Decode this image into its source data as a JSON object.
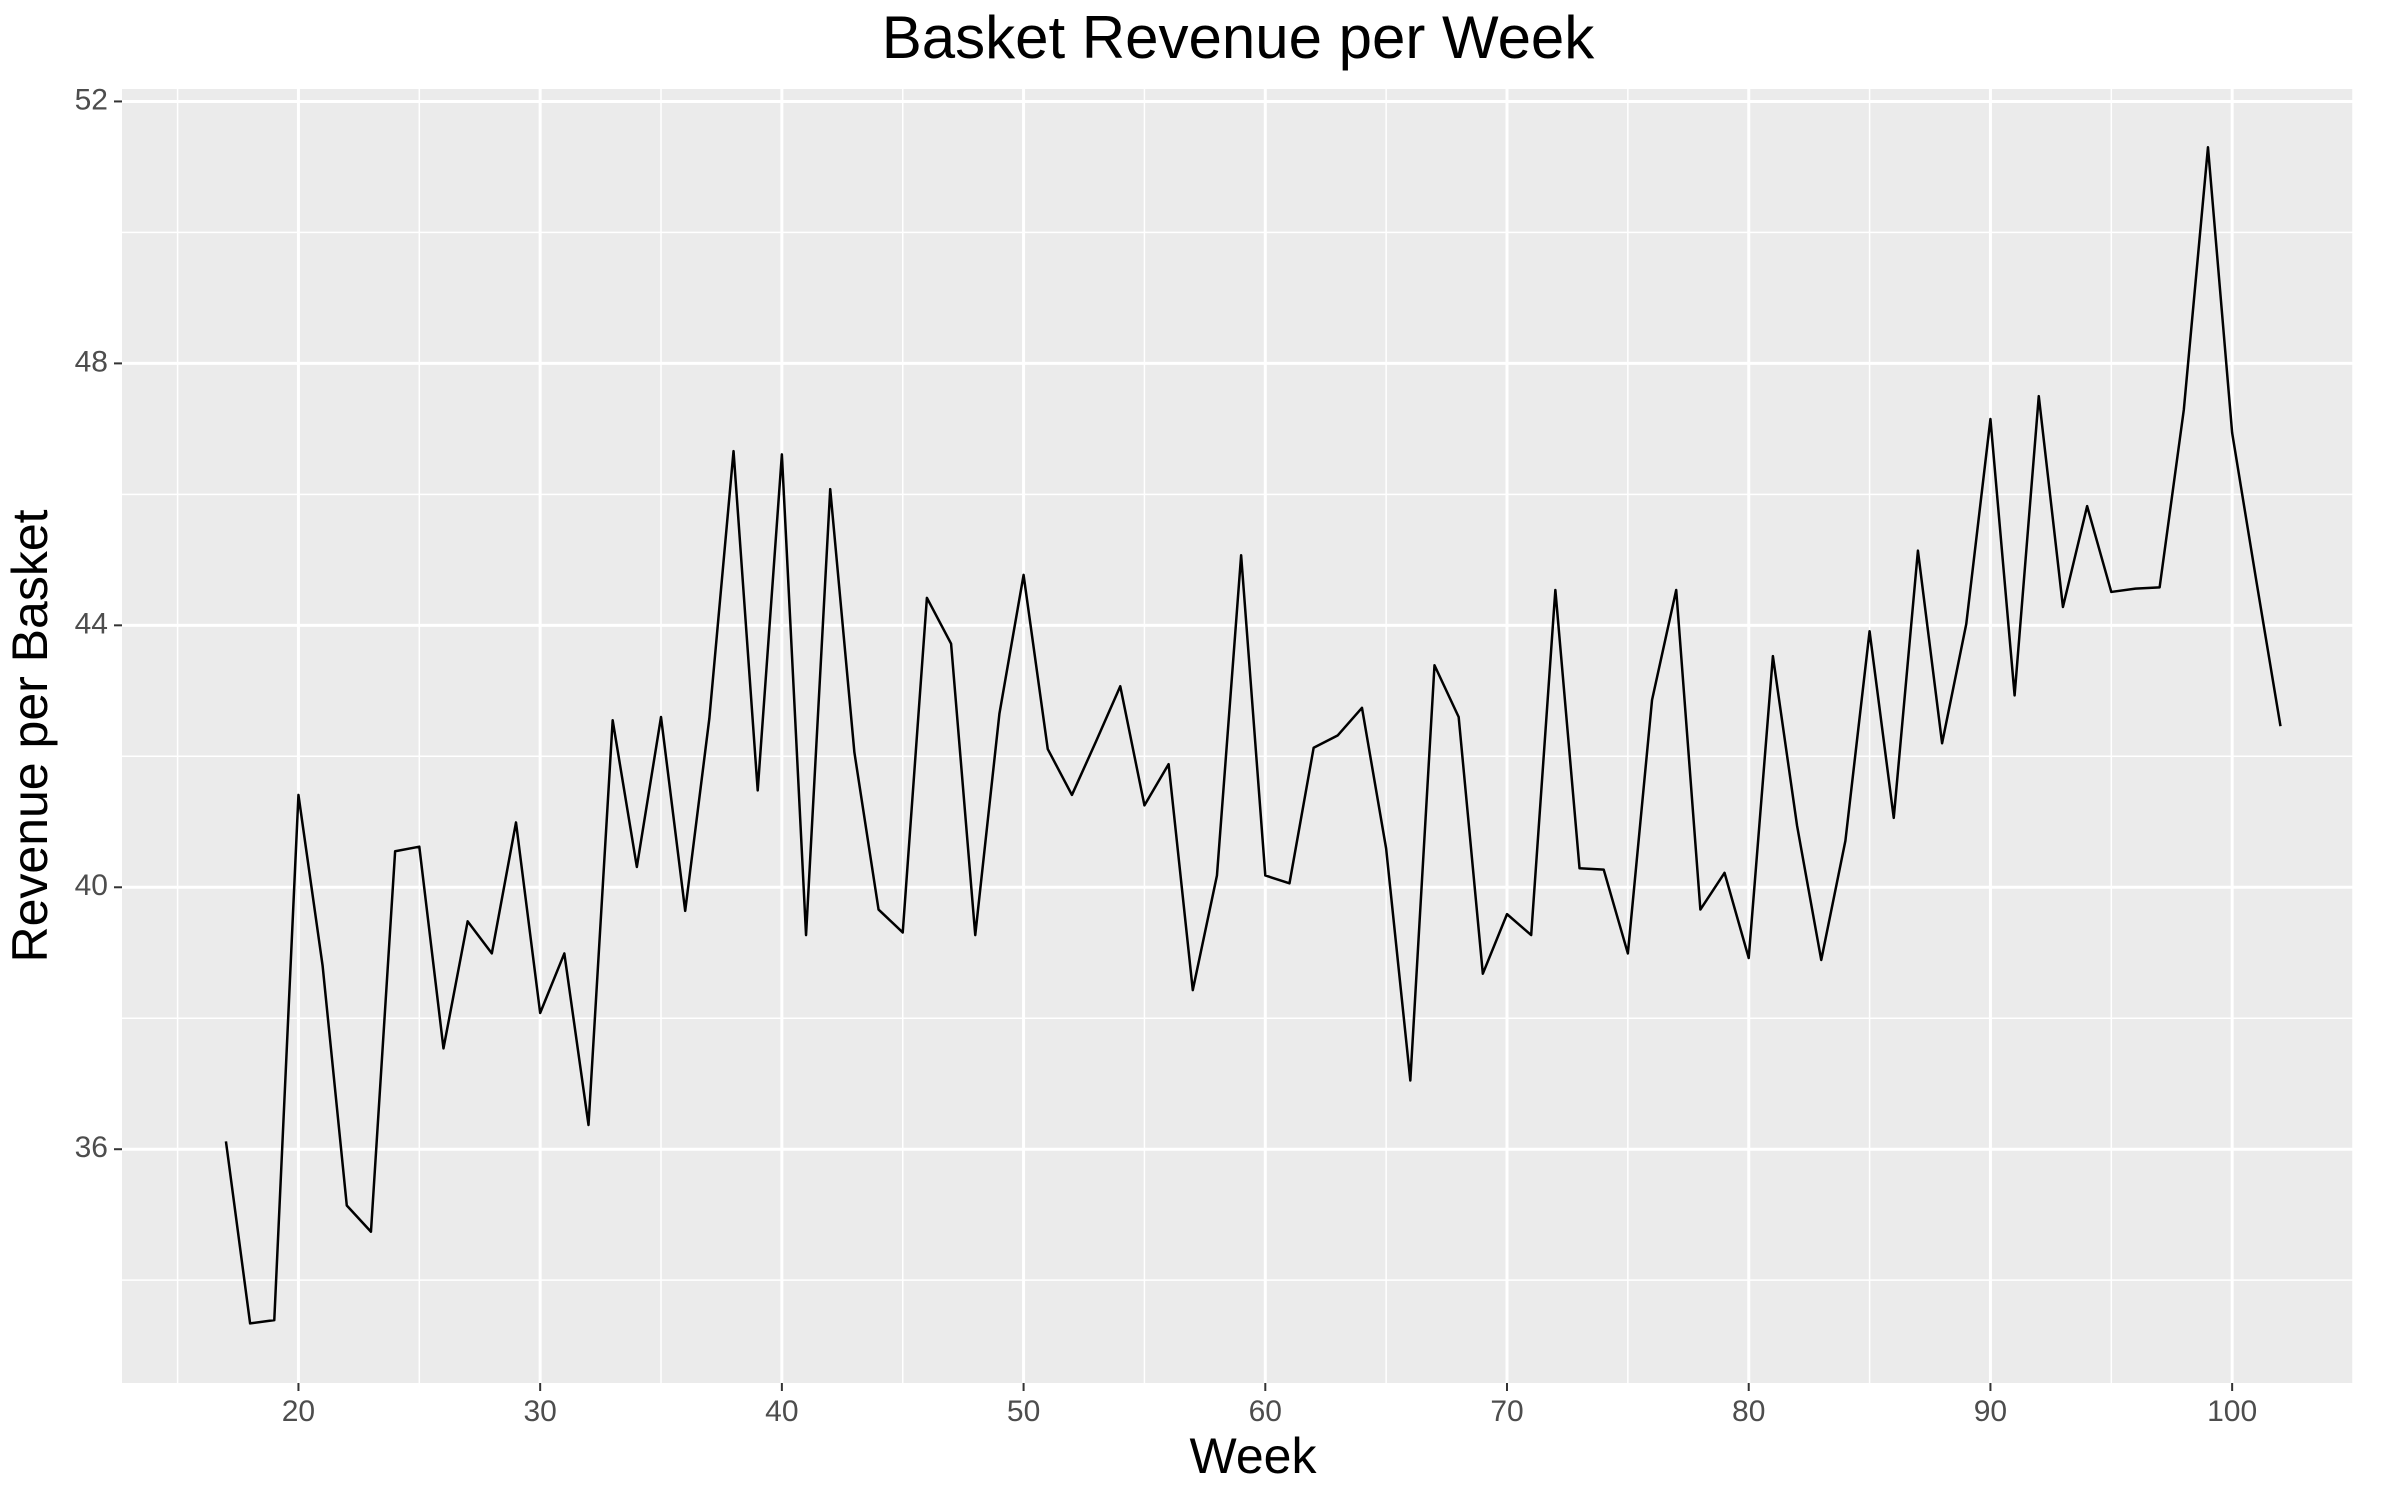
{
  "chart_data": {
    "type": "line",
    "title": "Basket Revenue per Week",
    "xlabel": "Week",
    "ylabel": "Revenue per Basket",
    "x": [
      17,
      18,
      19,
      20,
      21,
      22,
      23,
      24,
      25,
      26,
      27,
      28,
      29,
      30,
      31,
      32,
      33,
      34,
      35,
      36,
      37,
      38,
      39,
      40,
      41,
      42,
      43,
      44,
      45,
      46,
      47,
      48,
      49,
      50,
      51,
      52,
      53,
      54,
      55,
      56,
      57,
      58,
      59,
      60,
      61,
      62,
      63,
      64,
      65,
      66,
      67,
      68,
      69,
      70,
      71,
      72,
      73,
      74,
      75,
      76,
      77,
      78,
      79,
      80,
      81,
      82,
      83,
      84,
      85,
      86,
      87,
      88,
      89,
      90,
      91,
      92,
      93,
      94,
      95,
      96,
      97,
      98,
      99,
      100,
      101,
      102
    ],
    "series": [
      {
        "name": "Revenue per Basket",
        "color": "#000000",
        "values": [
          36.12,
          33.34,
          33.39,
          41.41,
          38.8,
          35.14,
          34.74,
          40.55,
          40.62,
          37.54,
          39.48,
          38.99,
          40.99,
          38.08,
          38.99,
          36.37,
          42.55,
          40.31,
          42.6,
          39.64,
          42.58,
          46.66,
          41.48,
          46.61,
          39.27,
          46.08,
          42.06,
          39.66,
          39.31,
          44.42,
          43.72,
          39.27,
          42.65,
          44.77,
          42.11,
          41.41,
          42.23,
          43.07,
          41.25,
          41.88,
          38.43,
          40.18,
          45.07,
          40.18,
          40.06,
          42.13,
          42.32,
          42.74,
          40.59,
          37.05,
          43.39,
          42.6,
          38.68,
          39.59,
          39.27,
          44.54,
          40.29,
          40.27,
          38.99,
          42.86,
          44.54,
          39.66,
          40.22,
          38.92,
          43.53,
          40.94,
          38.89,
          40.71,
          43.91,
          41.06,
          45.14,
          42.2,
          44.02,
          47.15,
          42.93,
          47.5,
          44.28,
          45.82,
          44.51,
          44.56,
          44.58,
          47.29,
          51.3,
          46.94,
          44.68,
          42.46
        ]
      }
    ],
    "xlim": [
      12.7,
      105
    ],
    "ylim": [
      32.43,
      52.19
    ],
    "xticks": [
      20,
      30,
      40,
      50,
      60,
      70,
      80,
      90,
      100
    ],
    "yticks": [
      36,
      40,
      44,
      48,
      52
    ],
    "x_minor_ticks": [
      15,
      25,
      35,
      45,
      55,
      65,
      75,
      85,
      95,
      105
    ],
    "y_minor_ticks": [
      34,
      38,
      42,
      46,
      50
    ],
    "grid": true,
    "background": "#ebebeb"
  }
}
